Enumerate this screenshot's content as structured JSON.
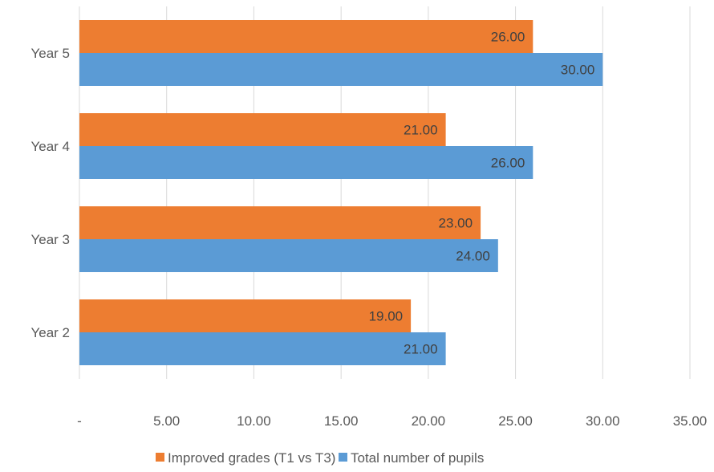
{
  "chart_data": {
    "type": "bar",
    "orientation": "horizontal",
    "categories": [
      "Year 5",
      "Year 4",
      "Year 3",
      "Year 2"
    ],
    "series": [
      {
        "name": "Improved grades (T1 vs T3)",
        "color": "#ed7d31",
        "values": [
          26,
          21,
          23,
          19
        ],
        "labels": [
          "26.00",
          "21.00",
          "23.00",
          "19.00"
        ]
      },
      {
        "name": "Total number of pupils",
        "color": "#5b9bd5",
        "values": [
          30,
          26,
          24,
          21
        ],
        "labels": [
          "30.00",
          "26.00",
          "24.00",
          "21.00"
        ]
      }
    ],
    "x_ticks": [
      0,
      5,
      10,
      15,
      20,
      25,
      30,
      35
    ],
    "x_tick_labels": [
      "-",
      "5.00",
      "10.00",
      "15.00",
      "20.00",
      "25.00",
      "30.00",
      "35.00"
    ],
    "xlim": [
      0,
      35
    ],
    "grid": "vertical",
    "legend": "bottom"
  }
}
